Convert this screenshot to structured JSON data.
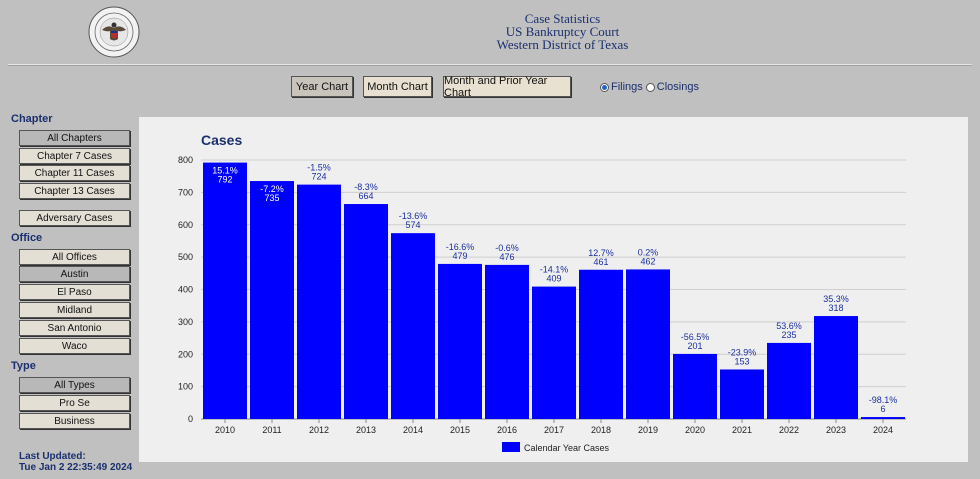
{
  "header": {
    "line1": "Case Statistics",
    "line2": "US Bankruptcy Court",
    "line3": "Western District of Texas"
  },
  "toolbar": {
    "year_chart": "Year Chart",
    "month_chart": "Month Chart",
    "month_prior_chart": "Month and Prior Year Chart",
    "filings": "Filings",
    "closings": "Closings"
  },
  "sidebar": {
    "chapter_heading": "Chapter",
    "chapters": [
      "All Chapters",
      "Chapter 7 Cases",
      "Chapter 11 Cases",
      "Chapter 13 Cases"
    ],
    "adversary": "Adversary Cases",
    "office_heading": "Office",
    "offices": [
      "All Offices",
      "Austin",
      "El Paso",
      "Midland",
      "San Antonio",
      "Waco"
    ],
    "type_heading": "Type",
    "types": [
      "All Types",
      "Pro Se",
      "Business"
    ],
    "updated_label": "Last Updated:",
    "updated_value": "Tue Jan 2 22:35:49 2024"
  },
  "colors": {
    "bar": "#0000ff",
    "title": "#1a2f6e",
    "label": "#1a2fa0"
  },
  "chart_data": {
    "type": "bar",
    "title": "Cases",
    "categories": [
      "2010",
      "2011",
      "2012",
      "2013",
      "2014",
      "2015",
      "2016",
      "2017",
      "2018",
      "2019",
      "2020",
      "2021",
      "2022",
      "2023",
      "2024"
    ],
    "series": [
      {
        "name": "Calendar Year Cases",
        "values": [
          792,
          735,
          724,
          664,
          574,
          479,
          476,
          409,
          461,
          462,
          201,
          153,
          235,
          318,
          6
        ],
        "change_labels": [
          "15.1%",
          "-7.2%",
          "-1.5%",
          "-8.3%",
          "-13.6%",
          "-16.6%",
          "-0.6%",
          "-14.1%",
          "12.7%",
          "0.2%",
          "-56.5%",
          "-23.9%",
          "53.6%",
          "35.3%",
          "-98.1%"
        ]
      }
    ],
    "y_ticks": [
      0,
      100,
      200,
      300,
      400,
      500,
      600,
      700,
      800
    ],
    "ylim": [
      0,
      800
    ],
    "grid": true,
    "legend": "bottom-center"
  }
}
